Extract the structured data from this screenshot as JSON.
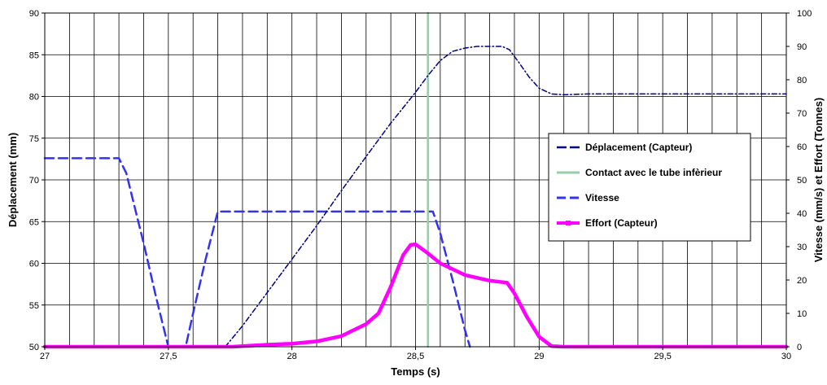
{
  "chart_data": {
    "type": "line",
    "xlabel": "Temps (s)",
    "ylabel": "Déplacement (mm)",
    "y2label": "Vitesse (mm/s) et Effort (Tonnes)",
    "xlim": [
      27,
      30
    ],
    "ylim": [
      50,
      90
    ],
    "y2lim": [
      0,
      100
    ],
    "x_ticks": [
      27,
      27.5,
      28,
      28.5,
      29,
      29.5,
      30
    ],
    "x_tick_labels": [
      "27",
      "27,5",
      "28",
      "28,5",
      "29",
      "29,5",
      "30"
    ],
    "y_ticks": [
      50,
      55,
      60,
      65,
      70,
      75,
      80,
      85,
      90
    ],
    "y_tick_labels": [
      "50",
      "55",
      "60",
      "65",
      "70",
      "75",
      "80",
      "85",
      "90"
    ],
    "y2_ticks": [
      0,
      10,
      20,
      30,
      40,
      50,
      60,
      70,
      80,
      90,
      100
    ],
    "y2_tick_labels": [
      "0",
      "10",
      "20",
      "30",
      "40",
      "50",
      "60",
      "70",
      "80",
      "90",
      "100"
    ],
    "grid": true,
    "legend_position": "right",
    "series": [
      {
        "name": "Déplacement (Capteur)",
        "axis": "left",
        "color": "#000080",
        "style": "dashdot",
        "points": [
          [
            27.73,
            50.0
          ],
          [
            27.8,
            52.5
          ],
          [
            27.9,
            56.5
          ],
          [
            28.0,
            60.5
          ],
          [
            28.1,
            64.5
          ],
          [
            28.2,
            68.7
          ],
          [
            28.3,
            72.8
          ],
          [
            28.4,
            76.8
          ],
          [
            28.5,
            80.5
          ],
          [
            28.55,
            82.5
          ],
          [
            28.6,
            84.3
          ],
          [
            28.65,
            85.4
          ],
          [
            28.7,
            85.8
          ],
          [
            28.75,
            86.0
          ],
          [
            28.85,
            86.0
          ],
          [
            28.88,
            85.6
          ],
          [
            28.92,
            84.0
          ],
          [
            28.96,
            82.3
          ],
          [
            29.0,
            81.0
          ],
          [
            29.05,
            80.3
          ],
          [
            29.1,
            80.2
          ],
          [
            29.2,
            80.3
          ],
          [
            29.5,
            80.3
          ],
          [
            30.0,
            80.3
          ]
        ]
      },
      {
        "name": "Contact avec le tube infèrieur",
        "axis": "left",
        "color": "#99ccaa",
        "style": "solid",
        "points": [
          [
            28.55,
            50
          ],
          [
            28.55,
            90
          ]
        ]
      },
      {
        "name": "Vitesse",
        "axis": "right",
        "color": "#3333ee",
        "style": "dash",
        "points": [
          [
            27.0,
            56.5
          ],
          [
            27.3,
            56.5
          ],
          [
            27.33,
            52.0
          ],
          [
            27.36,
            43.0
          ],
          [
            27.4,
            31.0
          ],
          [
            27.45,
            15.0
          ],
          [
            27.5,
            0.0
          ],
          [
            27.57,
            0.0
          ],
          [
            27.6,
            10.0
          ],
          [
            27.65,
            26.0
          ],
          [
            27.7,
            40.5
          ],
          [
            28.57,
            40.5
          ],
          [
            28.6,
            34.0
          ],
          [
            28.65,
            20.0
          ],
          [
            28.7,
            5.0
          ],
          [
            28.72,
            0.0
          ]
        ]
      },
      {
        "name": "Effort (Capteur)",
        "axis": "right",
        "color": "#ff00ff",
        "style": "solid-thick",
        "points": [
          [
            27.0,
            0.0
          ],
          [
            27.76,
            0.0
          ],
          [
            27.8,
            0.2
          ],
          [
            27.9,
            0.6
          ],
          [
            28.0,
            0.9
          ],
          [
            28.1,
            1.6
          ],
          [
            28.2,
            3.2
          ],
          [
            28.3,
            6.8
          ],
          [
            28.35,
            10.0
          ],
          [
            28.4,
            18.0
          ],
          [
            28.45,
            27.5
          ],
          [
            28.48,
            30.5
          ],
          [
            28.5,
            30.7
          ],
          [
            28.55,
            28.0
          ],
          [
            28.6,
            25.0
          ],
          [
            28.7,
            21.5
          ],
          [
            28.8,
            19.8
          ],
          [
            28.87,
            19.2
          ],
          [
            28.9,
            16.0
          ],
          [
            28.95,
            9.0
          ],
          [
            29.0,
            3.0
          ],
          [
            29.05,
            0.2
          ],
          [
            29.1,
            0.0
          ],
          [
            30.0,
            0.0
          ]
        ]
      }
    ]
  }
}
